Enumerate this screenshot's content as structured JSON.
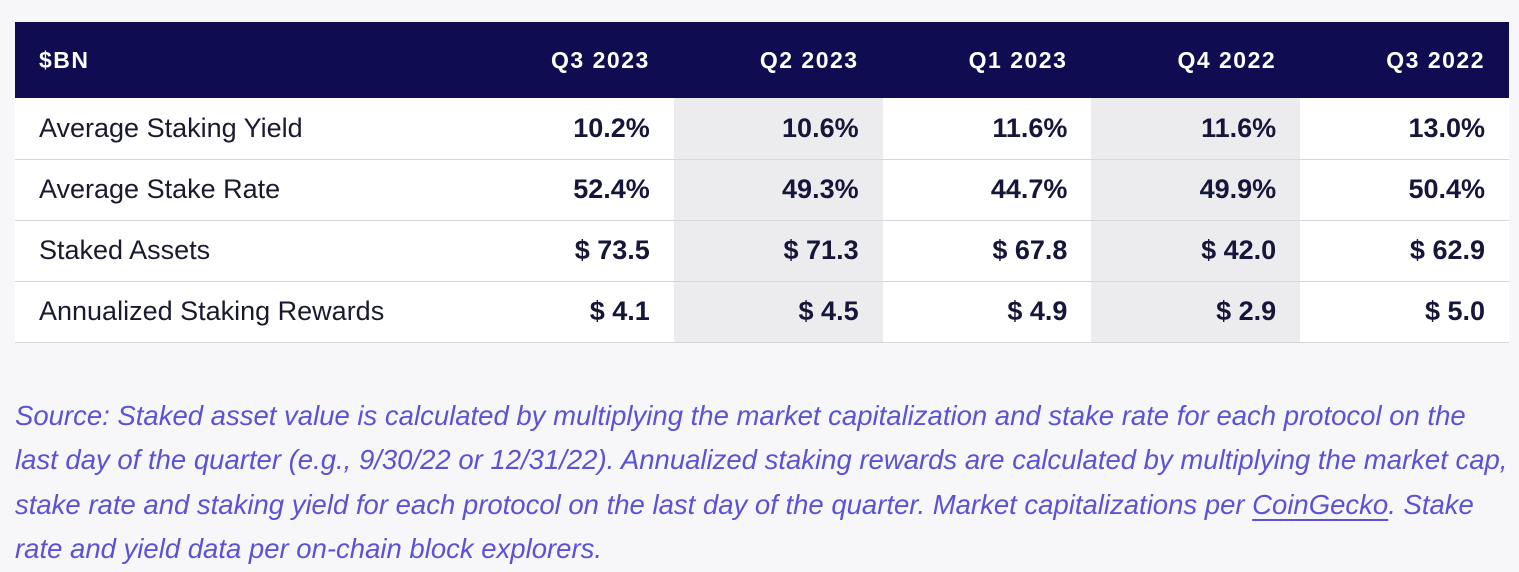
{
  "table": {
    "header": [
      "$BN",
      "Q3 2023",
      "Q2 2023",
      "Q1 2023",
      "Q4 2022",
      "Q3 2022"
    ],
    "rows": [
      {
        "label": "Average Staking Yield",
        "values": [
          "10.2%",
          "10.6%",
          "11.6%",
          "11.6%",
          "13.0%"
        ]
      },
      {
        "label": "Average Stake Rate",
        "values": [
          "52.4%",
          "49.3%",
          "44.7%",
          "49.9%",
          "50.4%"
        ]
      },
      {
        "label": "Staked Assets",
        "values": [
          "$ 73.5",
          "$ 71.3",
          "$ 67.8",
          "$ 42.0",
          "$ 62.9"
        ]
      },
      {
        "label": "Annualized Staking Rewards",
        "values": [
          "$ 4.1",
          "$ 4.5",
          "$ 4.9",
          "$ 2.9",
          "$ 5.0"
        ]
      }
    ]
  },
  "source": {
    "text_before": "Source: Staked asset value is calculated by multiplying the market capitalization and stake rate for each protocol on the last day of the quarter (e.g., 9/30/22 or 12/31/22). Annualized staking rewards are calculated by multiplying the market cap, stake rate and staking yield for each protocol on the last day of the quarter. Market capitalizations per",
    "link": "CoinGecko",
    "text_after": ". Stake rate and yield data per on-chain block explorers."
  },
  "colors": {
    "header_bg": "#0f0c52",
    "shaded_column": "#ececef",
    "source_text": "#5b52d6"
  }
}
